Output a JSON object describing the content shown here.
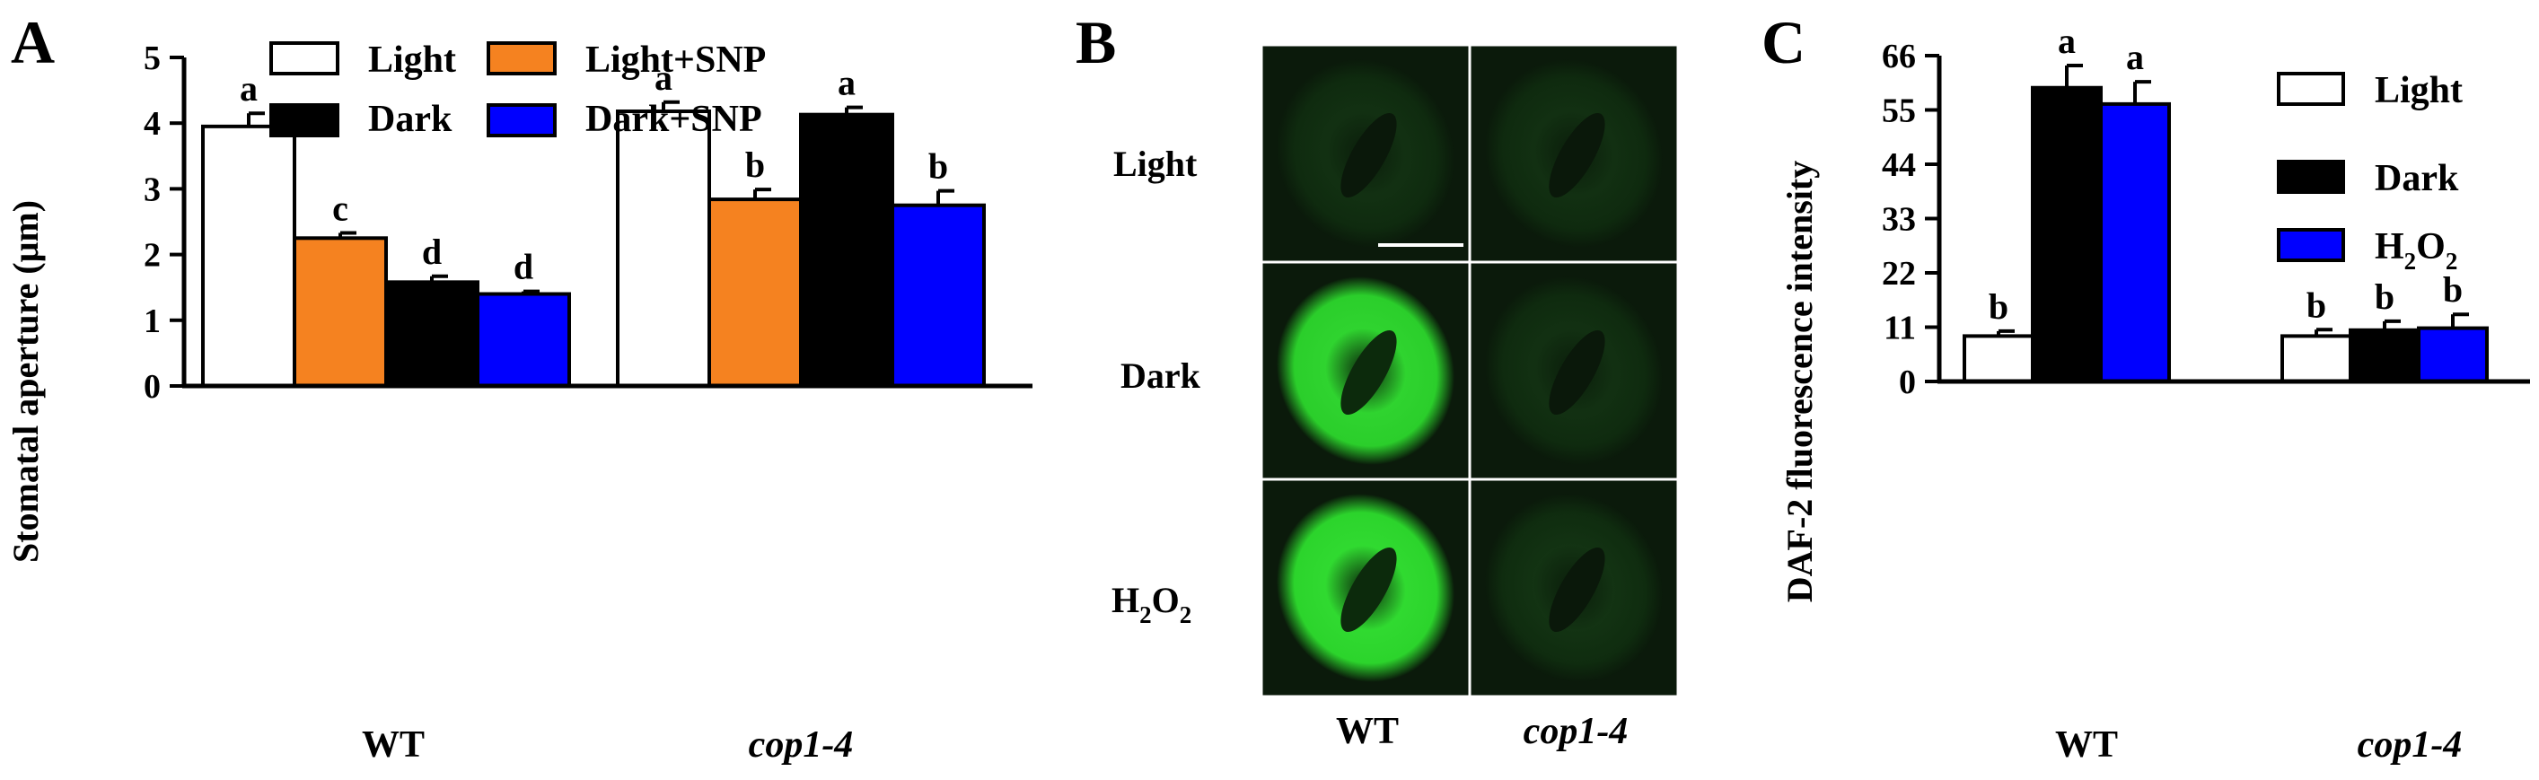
{
  "panels": {
    "A": "A",
    "B": "B",
    "C": "C"
  },
  "colors": {
    "light": "#ffffff",
    "dark": "#000000",
    "snp_light": "#f58220",
    "snp_dark": "#0000ff",
    "h2o2": "#0000ff",
    "fluorescence": "#2ee02e",
    "fluorescence_dim": "#0d3d0d"
  },
  "micrograph": {
    "rows": [
      "Light",
      "Dark",
      "H2O2"
    ],
    "row_h2o2": {
      "h": "H",
      "two_a": "2",
      "o": "O",
      "two_b": "2"
    },
    "cols": [
      "WT",
      "cop1-4"
    ],
    "brightness": [
      [
        0.12,
        0.1
      ],
      [
        0.85,
        0.12
      ],
      [
        0.9,
        0.2
      ]
    ]
  },
  "chart_data": [
    {
      "panel": "A",
      "type": "bar",
      "ylabel": "Stomatal aperture (μm)",
      "ylim": [
        0,
        5
      ],
      "yticks": [
        "0",
        "1",
        "2",
        "3",
        "4",
        "5"
      ],
      "categories": [
        "WT",
        "cop1-4"
      ],
      "series": [
        {
          "name": "Light",
          "values": [
            3.95,
            4.18
          ],
          "errors": [
            0.2,
            0.14
          ],
          "letters": [
            "a",
            "a"
          ]
        },
        {
          "name": "Light+SNP",
          "values": [
            2.25,
            2.84
          ],
          "errors": [
            0.08,
            0.15
          ],
          "letters": [
            "c",
            "b"
          ]
        },
        {
          "name": "Dark",
          "values": [
            1.58,
            4.13
          ],
          "errors": [
            0.09,
            0.11
          ],
          "letters": [
            "d",
            "a"
          ]
        },
        {
          "name": "Dark+SNP",
          "values": [
            1.4,
            2.75
          ],
          "errors": [
            0.04,
            0.22
          ],
          "letters": [
            "d",
            "b"
          ]
        }
      ],
      "legend_placement": "top"
    },
    {
      "panel": "C",
      "type": "bar",
      "ylabel": "DAF-2 fluorescence intensity",
      "ylim": [
        0,
        66
      ],
      "yticks": [
        "0",
        "11",
        "22",
        "33",
        "44",
        "55",
        "66"
      ],
      "categories": [
        "WT",
        "cop1-4"
      ],
      "series": [
        {
          "name": "Light",
          "values": [
            9.2,
            9.2
          ],
          "errors": [
            1.0,
            1.3
          ],
          "letters": [
            "b",
            "b"
          ]
        },
        {
          "name": "Dark",
          "values": [
            59.5,
            10.4
          ],
          "errors": [
            4.5,
            1.8
          ],
          "letters": [
            "a",
            "b"
          ]
        },
        {
          "name": "H2O2",
          "values": [
            56.2,
            10.8
          ],
          "errors": [
            4.5,
            2.8
          ],
          "letters": [
            "a",
            "b"
          ]
        }
      ],
      "legend_h2o2": {
        "h": "H",
        "two_a": "2",
        "o": "O",
        "two_b": "2"
      },
      "legend_placement": "top-right"
    }
  ]
}
